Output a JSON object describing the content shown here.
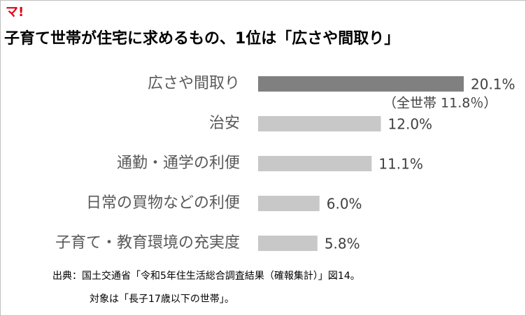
{
  "logo": "マ!",
  "chart_data": {
    "type": "bar",
    "orientation": "horizontal",
    "title": "子育て世帯が住宅に求めるもの、1位は「広さや間取り」",
    "categories": [
      "広さや間取り",
      "治安",
      "通勤・通学の利便",
      "日常の買物などの利便",
      "子育て・教育環境の充実度"
    ],
    "values": [
      20.1,
      12.0,
      11.1,
      6.0,
      5.8
    ],
    "value_labels": [
      "20.1%",
      "12.0%",
      "11.1%",
      "6.0%",
      "5.8%"
    ],
    "colors": [
      "#808080",
      "#c8c8c8",
      "#c8c8c8",
      "#c8c8c8",
      "#c8c8c8"
    ],
    "annotation": "（全世帯 11.8％）",
    "source": [
      "出典：国土交通省「令和5年住生活総合調査結果（確報集計）」図14。",
      "対象は「長子17歳以下の世帯」。"
    ]
  }
}
